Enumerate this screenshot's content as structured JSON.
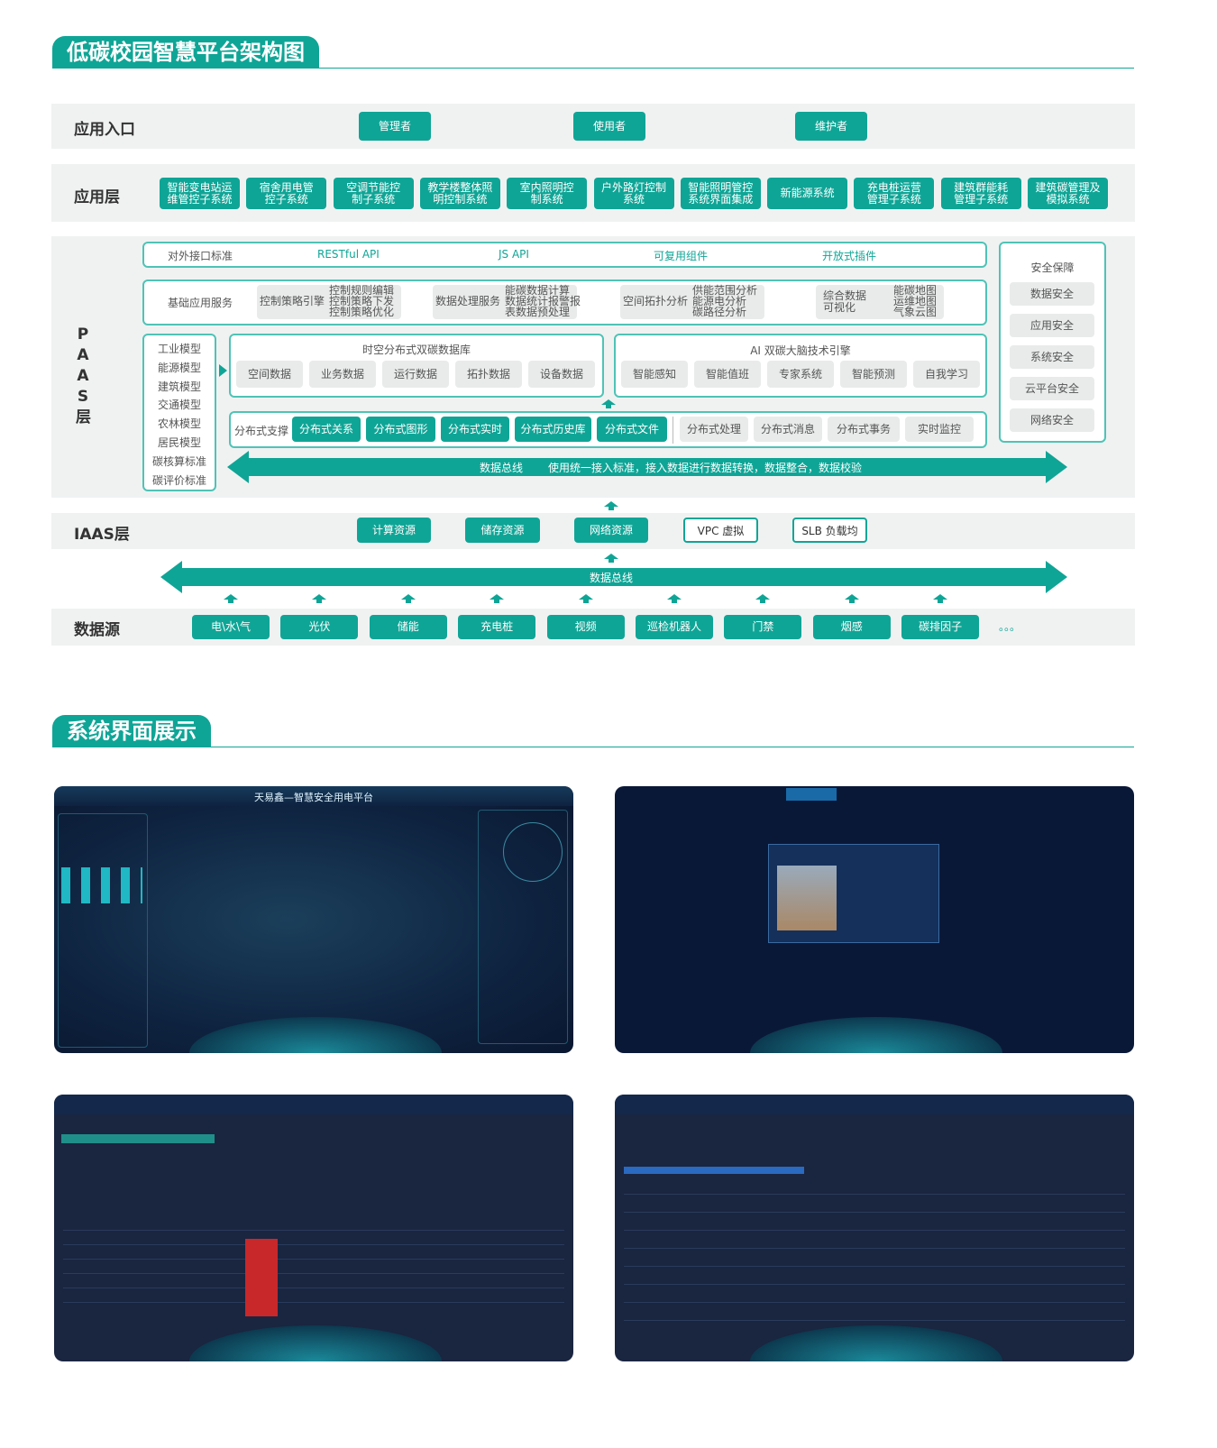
{
  "section1_title": "低碳校园智慧平台架构图",
  "section2_title": "系统界面展示",
  "entry": {
    "label": "应用入口",
    "buttons": [
      "管理者",
      "使用者",
      "维护者"
    ]
  },
  "app_layer": {
    "label": "应用层",
    "items": [
      "智能变电站运\n维管控子系统",
      "宿舍用电管\n控子系统",
      "空调节能控\n制子系统",
      "教学楼整体照\n明控制系统",
      "室内照明控\n制系统",
      "户外路灯控制\n系统",
      "智能照明管控\n系统界面集成",
      "新能源系统",
      "充电桩运营\n管理子系统",
      "建筑群能耗\n管理子系统",
      "建筑碳管理及\n模拟系统"
    ]
  },
  "paas": {
    "label": "PAAS层",
    "interface": {
      "label": "对外接口标准",
      "items": [
        "RESTful API",
        "JS API",
        "可复用组件",
        "开放式插件"
      ]
    },
    "basic": {
      "label": "基础应用服务",
      "groups": [
        {
          "name": "控制策略引擎",
          "items": "控制规则编辑\n控制策略下发\n控制策略优化"
        },
        {
          "name": "数据处理服务",
          "items": "能碳数据计算\n数据统计报警报\n表数据预处理"
        },
        {
          "name": "空间拓扑分析",
          "items": "供能范围分析\n能源电分析\n碳路径分析"
        },
        {
          "name": "综合数据\n可视化",
          "items": "能碳地图\n运维地图\n气象云图"
        }
      ]
    },
    "models": [
      "工业模型",
      "能源模型",
      "建筑模型",
      "交通模型",
      "农林模型",
      "居民模型",
      "碳核算标准",
      "碳评价标准"
    ],
    "database": {
      "title": "时空分布式双碳数据库",
      "items": [
        "空间数据",
        "业务数据",
        "运行数据",
        "拓扑数据",
        "设备数据"
      ]
    },
    "ai": {
      "title": "AI 双碳大脑技术引擎",
      "items": [
        "智能感知",
        "智能值班",
        "专家系统",
        "智能预测",
        "自我学习"
      ]
    },
    "distributed": {
      "label": "分布式支撑",
      "primary": [
        "分布式关系",
        "分布式图形",
        "分布式实时",
        "分布式历史库",
        "分布式文件"
      ],
      "secondary": [
        "分布式处理",
        "分布式消息",
        "分布式事务",
        "实时监控"
      ]
    },
    "bus": {
      "label": "数据总线",
      "desc": "使用统一接入标准，接入数据进行数据转换，数据整合，数据校验"
    },
    "security": {
      "title": "安全保障",
      "items": [
        "数据安全",
        "应用安全",
        "系统安全",
        "云平台安全",
        "网络安全"
      ]
    }
  },
  "iaas": {
    "label": "IAAS层",
    "filled": [
      "计算资源",
      "储存资源",
      "网络资源"
    ],
    "outlined": [
      "VPC 虚拟",
      "SLB 负载均"
    ]
  },
  "bus2": {
    "label": "数据总线"
  },
  "datasource": {
    "label": "数据源",
    "items": [
      "电\\水\\气",
      "光伏",
      "储能",
      "充电桩",
      "视频",
      "巡检机器人",
      "门禁",
      "烟感",
      "碳排因子"
    ],
    "more": "。。。"
  },
  "screenshots": {
    "s1_title": "天易鑫—智慧安全用电平台"
  },
  "colors": {
    "accent": "#0fa596",
    "band": "#f0f2f2",
    "screen_bg": "#0c1a33"
  }
}
